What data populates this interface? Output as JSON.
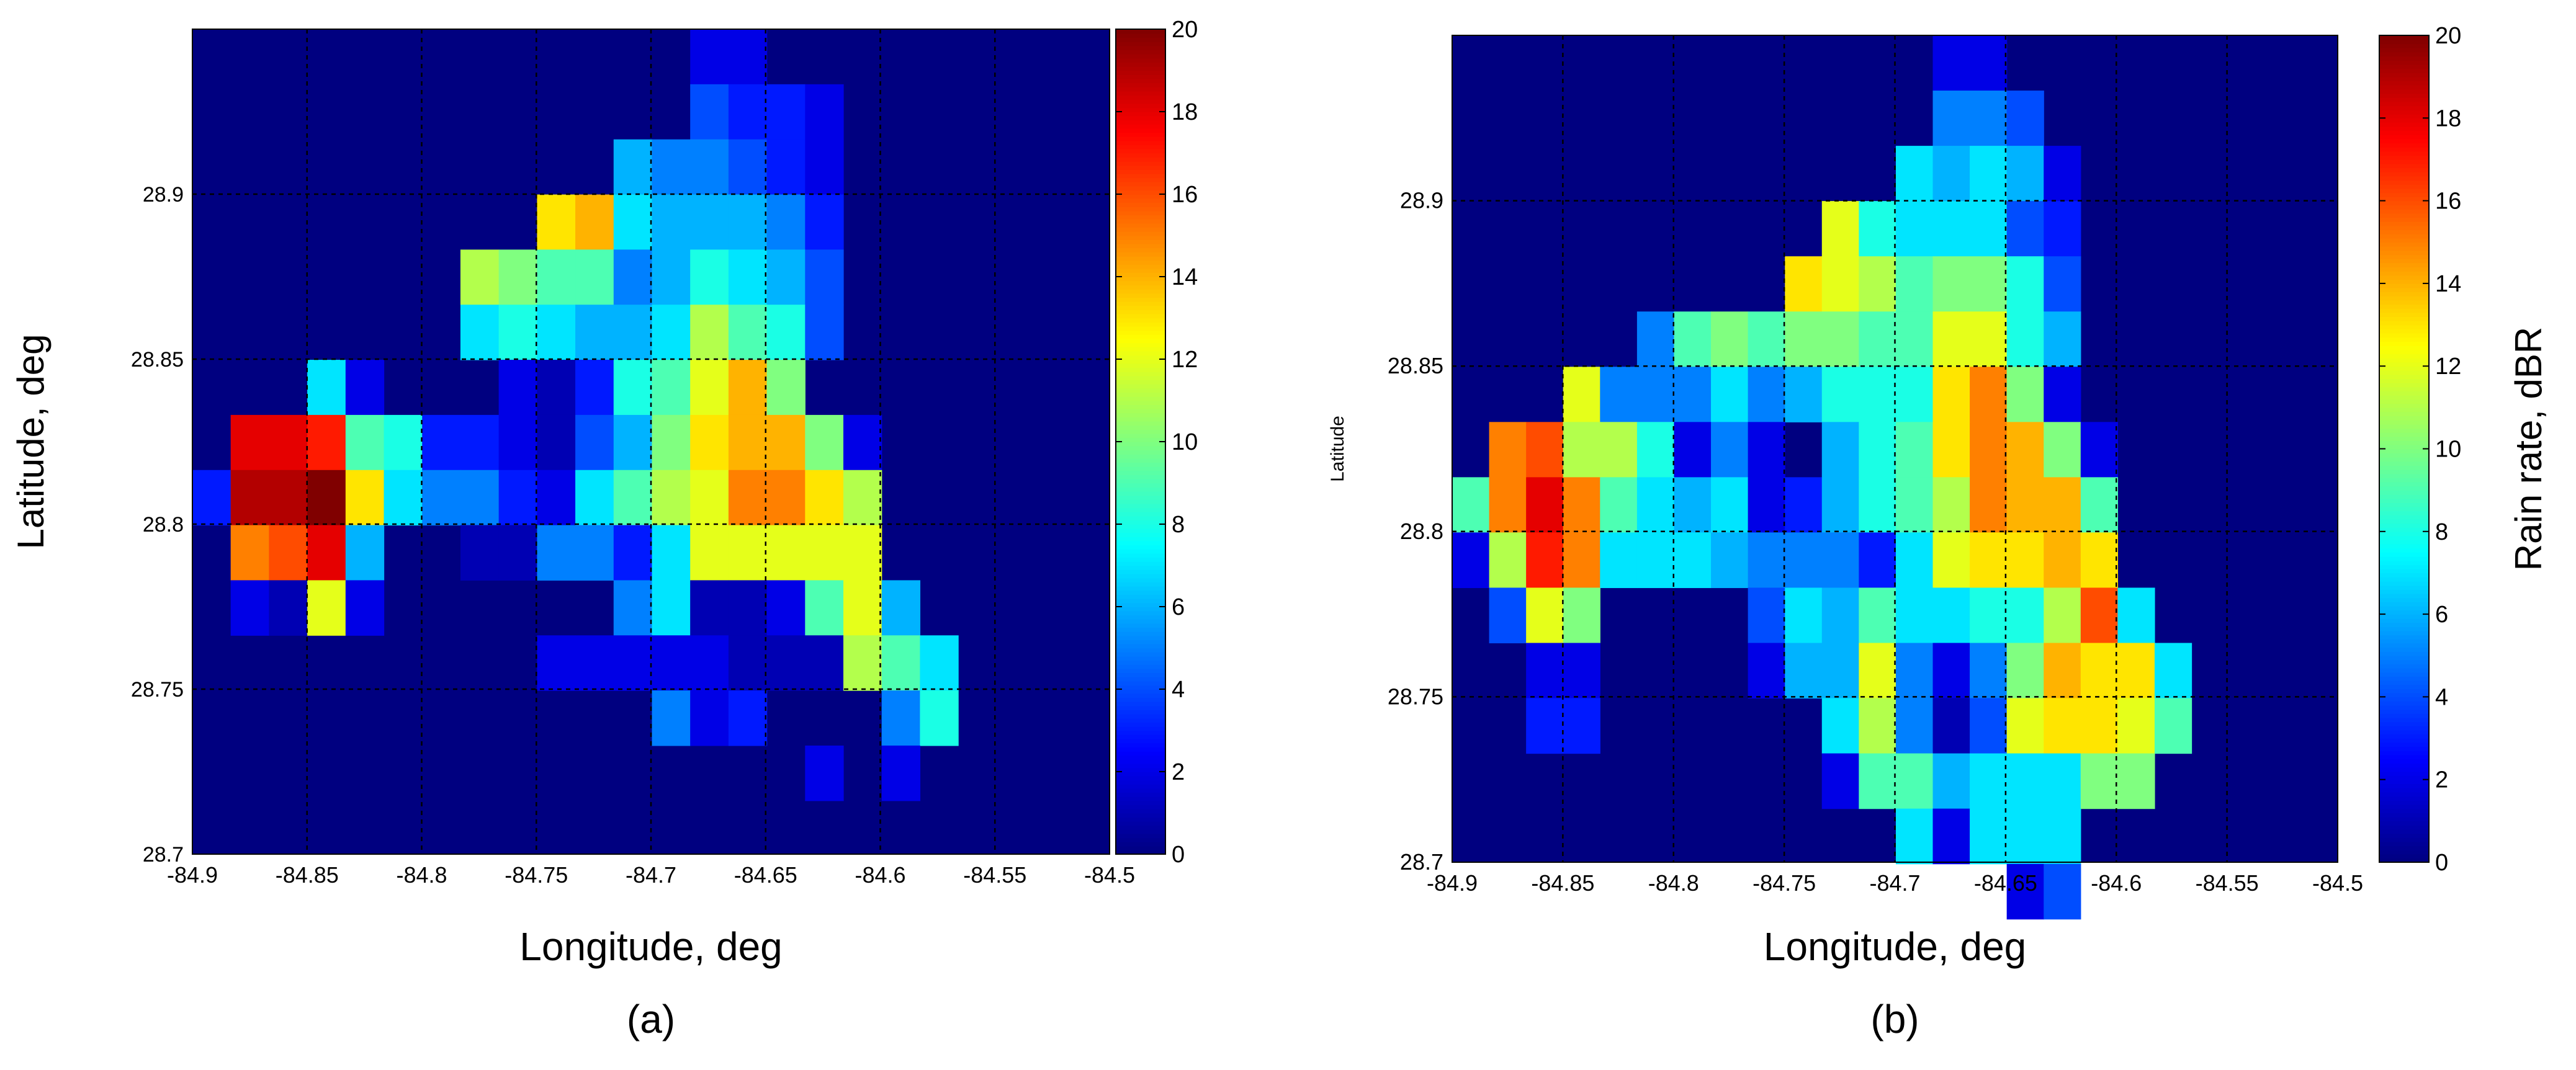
{
  "chart_data": [
    {
      "type": "heatmap",
      "panel_label": "(a)",
      "xlabel": "Longitude, deg",
      "ylabel": "Latitude, deg",
      "colorbar_label": "",
      "xlim": [
        -84.9,
        -84.5
      ],
      "ylim": [
        28.7,
        28.95
      ],
      "xticks": [
        "-84.9",
        "-84.85",
        "-84.8",
        "-84.75",
        "-84.7",
        "-84.65",
        "-84.6",
        "-84.55",
        "-84.5"
      ],
      "yticks": [
        "28.7",
        "28.75",
        "28.8",
        "28.85",
        "28.9"
      ],
      "colorbar_ticks": [
        "0",
        "2",
        "4",
        "6",
        "8",
        "10",
        "12",
        "14",
        "16",
        "18",
        "20"
      ],
      "clim": [
        0,
        20
      ],
      "colormap": "jet",
      "grid": true,
      "background_value": 0,
      "cell_size_deg": 0.0167,
      "cells_note": "[column index from lon -84.9 (step 0.0167 deg), row index from lat 28.95 downward (step 0.0167 deg), value in dBR]",
      "cells": [
        [
          13,
          0,
          2
        ],
        [
          14,
          0,
          2
        ],
        [
          13,
          1,
          4
        ],
        [
          14,
          1,
          3
        ],
        [
          15,
          1,
          3
        ],
        [
          16,
          1,
          2
        ],
        [
          11,
          2,
          6
        ],
        [
          12,
          2,
          5
        ],
        [
          13,
          2,
          5
        ],
        [
          14,
          2,
          4
        ],
        [
          15,
          2,
          3
        ],
        [
          16,
          2,
          2
        ],
        [
          9,
          3,
          13
        ],
        [
          10,
          3,
          14
        ],
        [
          11,
          3,
          7
        ],
        [
          12,
          3,
          6
        ],
        [
          13,
          3,
          6
        ],
        [
          14,
          3,
          6
        ],
        [
          15,
          3,
          5
        ],
        [
          16,
          3,
          3
        ],
        [
          7,
          4,
          11
        ],
        [
          8,
          4,
          10
        ],
        [
          9,
          4,
          9
        ],
        [
          10,
          4,
          9
        ],
        [
          11,
          4,
          5
        ],
        [
          12,
          4,
          6
        ],
        [
          13,
          4,
          8
        ],
        [
          14,
          4,
          7
        ],
        [
          15,
          4,
          6
        ],
        [
          16,
          4,
          4
        ],
        [
          7,
          5,
          7
        ],
        [
          8,
          5,
          8
        ],
        [
          9,
          5,
          7
        ],
        [
          10,
          5,
          6
        ],
        [
          11,
          5,
          6
        ],
        [
          12,
          5,
          7
        ],
        [
          13,
          5,
          11
        ],
        [
          14,
          5,
          9
        ],
        [
          15,
          5,
          8
        ],
        [
          16,
          5,
          4
        ],
        [
          3,
          6,
          7
        ],
        [
          4,
          6,
          2
        ],
        [
          8,
          6,
          2
        ],
        [
          9,
          6,
          1
        ],
        [
          10,
          6,
          3
        ],
        [
          11,
          6,
          8
        ],
        [
          12,
          6,
          9
        ],
        [
          13,
          6,
          12
        ],
        [
          14,
          6,
          14
        ],
        [
          15,
          6,
          10
        ],
        [
          1,
          7,
          18
        ],
        [
          2,
          7,
          18
        ],
        [
          3,
          7,
          17
        ],
        [
          4,
          7,
          9
        ],
        [
          5,
          7,
          8
        ],
        [
          6,
          7,
          3
        ],
        [
          7,
          7,
          3
        ],
        [
          8,
          7,
          2
        ],
        [
          9,
          7,
          1
        ],
        [
          10,
          7,
          4
        ],
        [
          11,
          7,
          6
        ],
        [
          12,
          7,
          10
        ],
        [
          13,
          7,
          13
        ],
        [
          14,
          7,
          14
        ],
        [
          15,
          7,
          14
        ],
        [
          16,
          7,
          10
        ],
        [
          17,
          7,
          2
        ],
        [
          0,
          8,
          3
        ],
        [
          1,
          8,
          19
        ],
        [
          2,
          8,
          19
        ],
        [
          3,
          8,
          20
        ],
        [
          4,
          8,
          13
        ],
        [
          5,
          8,
          7
        ],
        [
          6,
          8,
          5
        ],
        [
          7,
          8,
          5
        ],
        [
          8,
          8,
          3
        ],
        [
          9,
          8,
          2
        ],
        [
          10,
          8,
          7
        ],
        [
          11,
          8,
          9
        ],
        [
          12,
          8,
          11
        ],
        [
          13,
          8,
          12
        ],
        [
          14,
          8,
          15
        ],
        [
          15,
          8,
          15
        ],
        [
          16,
          8,
          13
        ],
        [
          17,
          8,
          11
        ],
        [
          1,
          9,
          15
        ],
        [
          2,
          9,
          16
        ],
        [
          3,
          9,
          18
        ],
        [
          4,
          9,
          6
        ],
        [
          7,
          9,
          1
        ],
        [
          8,
          9,
          1
        ],
        [
          9,
          9,
          5
        ],
        [
          10,
          9,
          5
        ],
        [
          11,
          9,
          3
        ],
        [
          12,
          9,
          7
        ],
        [
          13,
          9,
          12
        ],
        [
          14,
          9,
          12
        ],
        [
          15,
          9,
          12
        ],
        [
          16,
          9,
          12
        ],
        [
          17,
          9,
          12
        ],
        [
          1,
          10,
          2
        ],
        [
          2,
          10,
          1
        ],
        [
          3,
          10,
          12
        ],
        [
          4,
          10,
          2
        ],
        [
          11,
          10,
          5
        ],
        [
          12,
          10,
          7
        ],
        [
          13,
          10,
          1
        ],
        [
          14,
          10,
          1
        ],
        [
          15,
          10,
          2
        ],
        [
          16,
          10,
          9
        ],
        [
          17,
          10,
          12
        ],
        [
          18,
          10,
          6
        ],
        [
          9,
          11,
          2
        ],
        [
          10,
          11,
          2
        ],
        [
          11,
          11,
          2
        ],
        [
          12,
          11,
          2
        ],
        [
          13,
          11,
          2
        ],
        [
          14,
          11,
          1
        ],
        [
          15,
          11,
          1
        ],
        [
          16,
          11,
          1
        ],
        [
          17,
          11,
          11
        ],
        [
          18,
          11,
          9
        ],
        [
          19,
          11,
          7
        ],
        [
          12,
          12,
          5
        ],
        [
          13,
          12,
          2
        ],
        [
          14,
          12,
          3
        ],
        [
          18,
          12,
          5
        ],
        [
          19,
          12,
          8
        ],
        [
          16,
          13,
          2
        ],
        [
          18,
          13,
          2
        ]
      ]
    },
    {
      "type": "heatmap",
      "panel_label": "(b)",
      "xlabel": "Longitude, deg",
      "ylabel": "Latitude",
      "colorbar_label": "Rain rate, dBR",
      "xlim": [
        -84.9,
        -84.5
      ],
      "ylim": [
        28.7,
        28.95
      ],
      "xticks": [
        "-84.9",
        "-84.85",
        "-84.8",
        "-84.75",
        "-84.7",
        "-84.65",
        "-84.6",
        "-84.55",
        "-84.5"
      ],
      "yticks": [
        "28.7",
        "28.75",
        "28.8",
        "28.85",
        "28.9"
      ],
      "colorbar_ticks": [
        "0",
        "2",
        "4",
        "6",
        "8",
        "10",
        "12",
        "14",
        "16",
        "18",
        "20"
      ],
      "clim": [
        0,
        20
      ],
      "colormap": "jet",
      "grid": true,
      "background_value": 0,
      "cell_size_deg": 0.0167,
      "cells_note": "[column index from lon -84.9 (step 0.0167 deg), row index from lat 28.95 downward (step 0.0167 deg), value in dBR]",
      "cells": [
        [
          13,
          0,
          2
        ],
        [
          14,
          0,
          2
        ],
        [
          13,
          1,
          5
        ],
        [
          14,
          1,
          5
        ],
        [
          15,
          1,
          4
        ],
        [
          12,
          2,
          7
        ],
        [
          13,
          2,
          6
        ],
        [
          14,
          2,
          7
        ],
        [
          15,
          2,
          6
        ],
        [
          16,
          2,
          2
        ],
        [
          10,
          3,
          12
        ],
        [
          11,
          3,
          8
        ],
        [
          12,
          3,
          7
        ],
        [
          13,
          3,
          7
        ],
        [
          14,
          3,
          7
        ],
        [
          15,
          3,
          4
        ],
        [
          16,
          3,
          3
        ],
        [
          9,
          4,
          13
        ],
        [
          10,
          4,
          12
        ],
        [
          11,
          4,
          11
        ],
        [
          12,
          4,
          9
        ],
        [
          13,
          4,
          10
        ],
        [
          14,
          4,
          10
        ],
        [
          15,
          4,
          8
        ],
        [
          16,
          4,
          4
        ],
        [
          5,
          5,
          5
        ],
        [
          6,
          5,
          9
        ],
        [
          7,
          5,
          10
        ],
        [
          8,
          5,
          9
        ],
        [
          9,
          5,
          10
        ],
        [
          10,
          5,
          10
        ],
        [
          11,
          5,
          9
        ],
        [
          12,
          5,
          9
        ],
        [
          13,
          5,
          12
        ],
        [
          14,
          5,
          12
        ],
        [
          15,
          5,
          8
        ],
        [
          16,
          5,
          6
        ],
        [
          3,
          6,
          12
        ],
        [
          4,
          6,
          5
        ],
        [
          5,
          6,
          5
        ],
        [
          6,
          6,
          5
        ],
        [
          7,
          6,
          7
        ],
        [
          8,
          6,
          5
        ],
        [
          9,
          6,
          6
        ],
        [
          10,
          6,
          8
        ],
        [
          11,
          6,
          8
        ],
        [
          12,
          6,
          8
        ],
        [
          13,
          6,
          13
        ],
        [
          14,
          6,
          15
        ],
        [
          15,
          6,
          10
        ],
        [
          16,
          6,
          2
        ],
        [
          1,
          7,
          15
        ],
        [
          2,
          7,
          16
        ],
        [
          3,
          7,
          11
        ],
        [
          4,
          7,
          11
        ],
        [
          5,
          7,
          8
        ],
        [
          6,
          7,
          2
        ],
        [
          7,
          7,
          5
        ],
        [
          8,
          7,
          2
        ],
        [
          10,
          7,
          6
        ],
        [
          11,
          7,
          8
        ],
        [
          12,
          7,
          9
        ],
        [
          13,
          7,
          13
        ],
        [
          14,
          7,
          15
        ],
        [
          15,
          7,
          14
        ],
        [
          16,
          7,
          10
        ],
        [
          17,
          7,
          2
        ],
        [
          0,
          8,
          9
        ],
        [
          1,
          8,
          15
        ],
        [
          2,
          8,
          18
        ],
        [
          3,
          8,
          15
        ],
        [
          4,
          8,
          9
        ],
        [
          5,
          8,
          7
        ],
        [
          6,
          8,
          6
        ],
        [
          7,
          8,
          7
        ],
        [
          8,
          8,
          2
        ],
        [
          9,
          8,
          3
        ],
        [
          10,
          8,
          6
        ],
        [
          11,
          8,
          8
        ],
        [
          12,
          8,
          9
        ],
        [
          13,
          8,
          11
        ],
        [
          14,
          8,
          15
        ],
        [
          15,
          8,
          14
        ],
        [
          16,
          8,
          14
        ],
        [
          17,
          8,
          9
        ],
        [
          0,
          9,
          2
        ],
        [
          1,
          9,
          11
        ],
        [
          2,
          9,
          17
        ],
        [
          3,
          9,
          15
        ],
        [
          4,
          9,
          7
        ],
        [
          5,
          9,
          7
        ],
        [
          6,
          9,
          7
        ],
        [
          7,
          9,
          6
        ],
        [
          8,
          9,
          5
        ],
        [
          9,
          9,
          5
        ],
        [
          10,
          9,
          5
        ],
        [
          11,
          9,
          3
        ],
        [
          12,
          9,
          7
        ],
        [
          13,
          9,
          12
        ],
        [
          14,
          9,
          13
        ],
        [
          15,
          9,
          13
        ],
        [
          16,
          9,
          14
        ],
        [
          17,
          9,
          13
        ],
        [
          1,
          10,
          4
        ],
        [
          2,
          10,
          12
        ],
        [
          3,
          10,
          10
        ],
        [
          8,
          10,
          4
        ],
        [
          9,
          10,
          7
        ],
        [
          10,
          10,
          6
        ],
        [
          11,
          10,
          9
        ],
        [
          12,
          10,
          7
        ],
        [
          13,
          10,
          7
        ],
        [
          14,
          10,
          8
        ],
        [
          15,
          10,
          8
        ],
        [
          16,
          10,
          11
        ],
        [
          17,
          10,
          16
        ],
        [
          18,
          10,
          7
        ],
        [
          2,
          11,
          2
        ],
        [
          3,
          11,
          2
        ],
        [
          8,
          11,
          2
        ],
        [
          9,
          11,
          6
        ],
        [
          10,
          11,
          6
        ],
        [
          11,
          11,
          12
        ],
        [
          12,
          11,
          5
        ],
        [
          13,
          11,
          2
        ],
        [
          14,
          11,
          5
        ],
        [
          15,
          11,
          10
        ],
        [
          16,
          11,
          14
        ],
        [
          17,
          11,
          13
        ],
        [
          18,
          11,
          13
        ],
        [
          19,
          11,
          7
        ],
        [
          2,
          12,
          3
        ],
        [
          3,
          12,
          3
        ],
        [
          10,
          12,
          7
        ],
        [
          11,
          12,
          11
        ],
        [
          12,
          12,
          5
        ],
        [
          13,
          12,
          1
        ],
        [
          14,
          12,
          4
        ],
        [
          15,
          12,
          12
        ],
        [
          16,
          12,
          13
        ],
        [
          17,
          12,
          13
        ],
        [
          18,
          12,
          12
        ],
        [
          19,
          12,
          9
        ],
        [
          10,
          13,
          2
        ],
        [
          11,
          13,
          9
        ],
        [
          12,
          13,
          9
        ],
        [
          13,
          13,
          6
        ],
        [
          14,
          13,
          7
        ],
        [
          15,
          13,
          7
        ],
        [
          16,
          13,
          7
        ],
        [
          17,
          13,
          10
        ],
        [
          18,
          13,
          10
        ],
        [
          12,
          14,
          7
        ],
        [
          13,
          14,
          2
        ],
        [
          14,
          14,
          7
        ],
        [
          15,
          14,
          7
        ],
        [
          16,
          14,
          7
        ],
        [
          15,
          15,
          2
        ],
        [
          16,
          15,
          4
        ]
      ]
    }
  ]
}
